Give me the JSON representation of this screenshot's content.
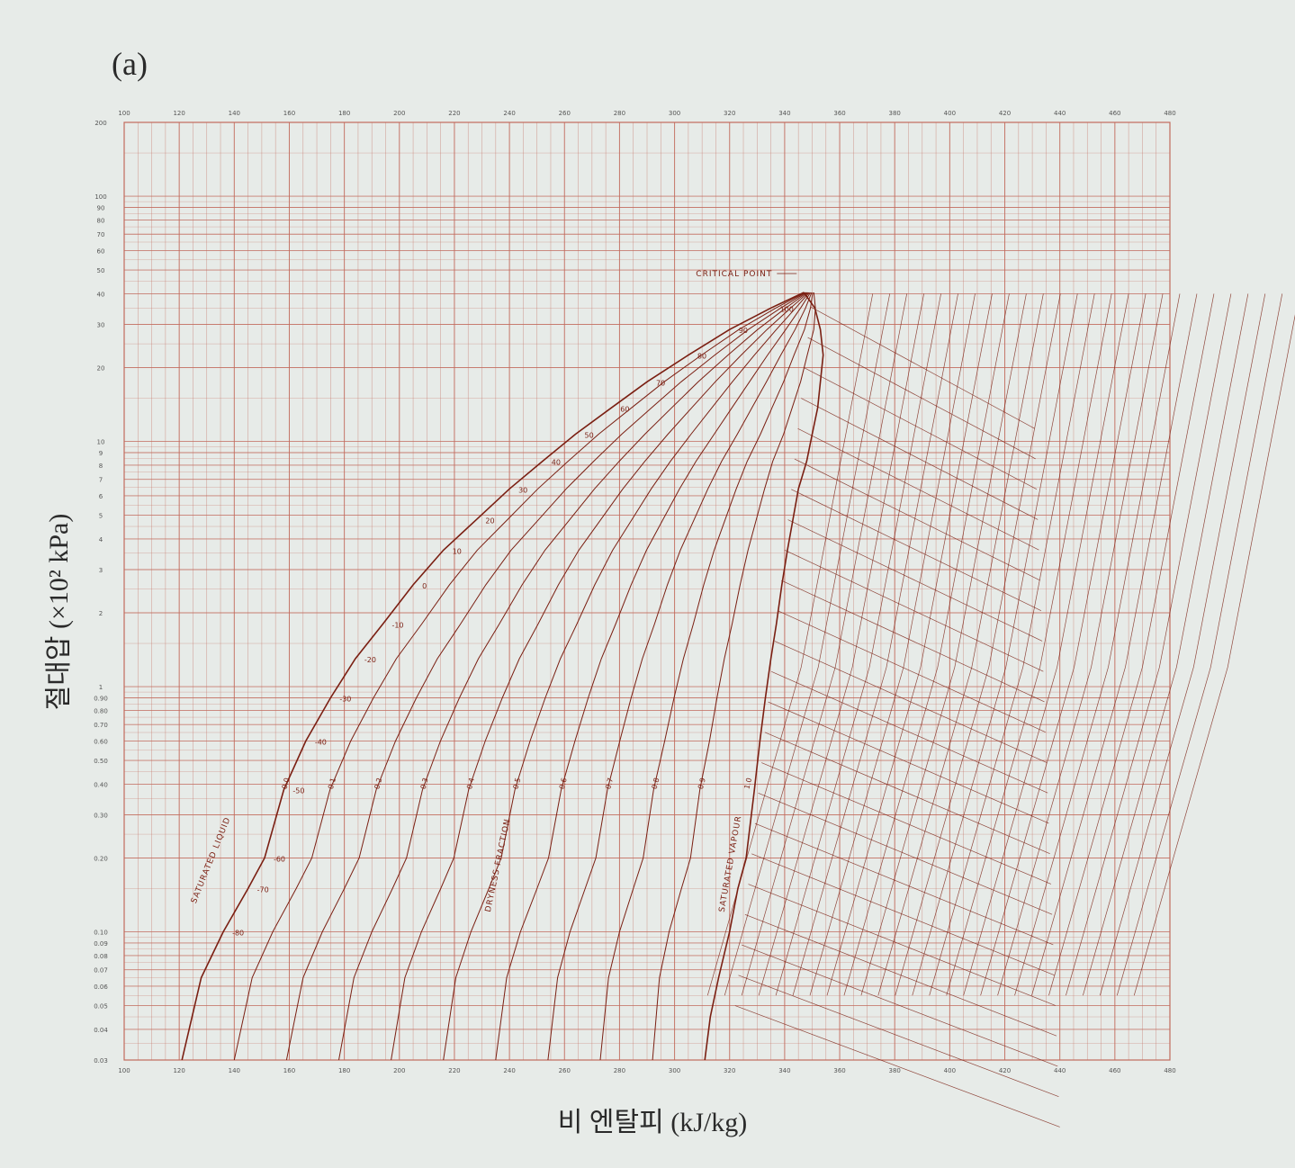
{
  "figure": {
    "panel_label": "(a)",
    "ylabel": "절대압 (×10² kPa)",
    "xlabel": "비 엔탈피 (kJ/kg)"
  },
  "colors": {
    "background": "#e7ebe8",
    "grid": "#c26a5c",
    "curve": "#7a1f12",
    "axis_text": "#2a2a2a"
  },
  "chart_data": {
    "type": "line",
    "title": "",
    "xlabel": "비 엔탈피 (kJ/kg)",
    "ylabel": "절대압 (×10² kPa)",
    "xlim": [
      100,
      480
    ],
    "ylim": [
      0.03,
      200
    ],
    "yscale": "log",
    "grid": true,
    "x_ticks": [
      100,
      120,
      140,
      160,
      180,
      200,
      220,
      240,
      260,
      280,
      300,
      320,
      340,
      360,
      380,
      400,
      420,
      440,
      460,
      480
    ],
    "y_ticks": [
      0.03,
      0.04,
      0.05,
      0.06,
      0.07,
      0.08,
      0.09,
      0.1,
      0.2,
      0.3,
      0.4,
      0.5,
      0.6,
      0.7,
      0.8,
      0.9,
      1,
      2,
      3,
      4,
      5,
      6,
      7,
      8,
      9,
      10,
      20,
      30,
      40,
      50,
      60,
      70,
      80,
      90,
      100,
      200
    ],
    "y_tick_labels": [
      "0.03",
      "0.04",
      "0.05",
      "0.06",
      "0.07",
      "0.08",
      "0.09",
      "0.10",
      "0.20",
      "0.30",
      "0.40",
      "0.50",
      "0.60",
      "0.70",
      "0.80",
      "0.90",
      "1",
      "2",
      "3",
      "4",
      "5",
      "6",
      "7",
      "8",
      "9",
      "10",
      "20",
      "30",
      "40",
      "50",
      "60",
      "70",
      "80",
      "90",
      "100",
      "200"
    ],
    "annotations": [
      "CRITICAL POINT",
      "SATURATED LIQUID",
      "DRYNESS FRACTION",
      "SATURATED VAPOUR"
    ],
    "series": [
      {
        "name": "SATURATED LIQUID",
        "x": [
          121,
          128,
          136,
          145,
          151,
          158,
          166,
          175,
          184,
          194,
          205,
          216,
          228,
          240,
          252,
          264,
          277,
          290,
          305,
          320,
          335,
          347
        ],
        "y": [
          0.03,
          0.065,
          0.1,
          0.15,
          0.2,
          0.38,
          0.6,
          0.9,
          1.3,
          1.8,
          2.6,
          3.6,
          4.8,
          6.4,
          8.3,
          10.7,
          13.7,
          17.5,
          22.5,
          28.6,
          35,
          40.5
        ]
      },
      {
        "name": "SATURATED VAPOUR",
        "x": [
          311,
          313,
          316,
          320,
          323,
          326,
          329,
          331,
          333,
          335,
          337,
          339,
          341,
          343,
          345,
          348,
          350,
          352,
          353,
          354,
          353,
          351,
          347
        ],
        "y": [
          0.03,
          0.045,
          0.065,
          0.1,
          0.15,
          0.2,
          0.38,
          0.6,
          0.9,
          1.3,
          1.8,
          2.6,
          3.6,
          4.8,
          6.4,
          8.3,
          10.7,
          13.7,
          17.5,
          22.5,
          28.6,
          35,
          40.5
        ]
      }
    ],
    "saturation_temperature_labels": [
      "-80",
      "-70",
      "-60",
      "-50",
      "-40",
      "-30",
      "-20",
      "-10",
      "0",
      "10",
      "20",
      "30",
      "40",
      "50",
      "60",
      "70",
      "80",
      "90",
      "100"
    ],
    "dryness_fraction_labels": [
      "0.0",
      "0.1",
      "0.2",
      "0.3",
      "0.4",
      "0.5",
      "0.6",
      "0.7",
      "0.8",
      "0.9",
      "1.0"
    ],
    "critical_point": {
      "x": 347,
      "y": 40.5
    }
  }
}
